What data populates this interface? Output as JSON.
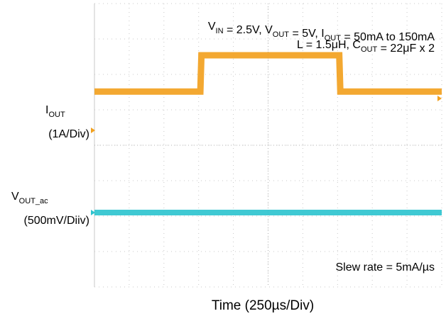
{
  "chart_data": {
    "type": "line",
    "conditions_line1": [
      {
        "t": "V"
      },
      {
        "t": "IN",
        "sub": true
      },
      {
        "t": " = 2.5V, V"
      },
      {
        "t": "OUT",
        "sub": true
      },
      {
        "t": " = 5V, I"
      },
      {
        "t": "OUT",
        "sub": true
      },
      {
        "t": " = 50mA to 150mA"
      }
    ],
    "conditions_line2": [
      {
        "t": "L = 1.5"
      },
      {
        "t": "μ"
      },
      {
        "t": "H, C"
      },
      {
        "t": "OUT",
        "sub": true
      },
      {
        "t": " = 22"
      },
      {
        "t": "μ"
      },
      {
        "t": "F x 2"
      }
    ],
    "annotation": "Slew rate = 5mA/µs",
    "xlabel": "Time (250µs/Div)",
    "x_divisions": 10,
    "y_divisions": 8,
    "series": [
      {
        "label_main": "I",
        "label_sub": "OUT",
        "scale": "(1A/Div)",
        "color": "#f2a11f",
        "x": [
          0,
          3.05,
          3.08,
          7.05,
          7.08,
          10
        ],
        "y": [
          0.05,
          0.05,
          0.15,
          0.15,
          0.05,
          0.05
        ]
      },
      {
        "label_main": "V",
        "label_sub": "OUT_ac",
        "scale": "(500mV/Diiv)",
        "color": "#2fc4cf",
        "x": [
          0,
          10
        ],
        "y": [
          0,
          0
        ]
      }
    ]
  }
}
